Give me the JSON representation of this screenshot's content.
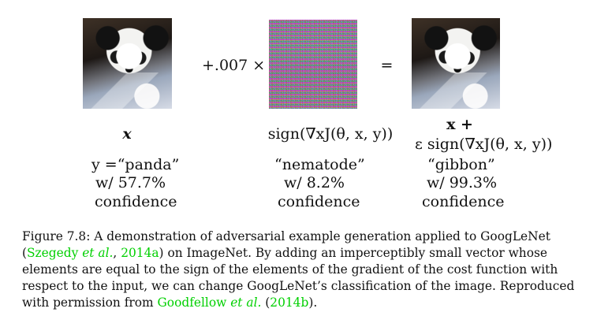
{
  "figure": {
    "left_image_alt": "panda image",
    "middle_image_alt": "perturbation noise image",
    "right_image_alt": "adversarial panda image",
    "op_plus_scale": "+.007 ×",
    "op_equals": "=",
    "left_var": "x",
    "middle_expr": "sign(∇xJ(θ, x, y))",
    "right_expr_line1": "x +",
    "right_expr_line2": "ε sign(∇xJ(θ, x, y))",
    "left_class_line1": "y =“panda”",
    "left_class_line2": "w/ 57.7%",
    "left_class_line3": "confidence",
    "middle_class_line1": "“nematode”",
    "middle_class_line2": "w/ 8.2%",
    "middle_class_line3": "confidence",
    "right_class_line1": "“gibbon”",
    "right_class_line2": "w/ 99.3%",
    "right_class_line3": "confidence"
  },
  "caption": {
    "line1": "Figure 7.8: A demonstration of adversarial example generation applied to GoogLeNet",
    "ref1_author": "Szegedy",
    "ref1_etal": "et al.",
    "ref1_year": "2014a",
    "line2_rest": " on ImageNet. By adding an imperceptibly small vector whose",
    "line3": "elements are equal to the sign of the elements of the gradient of the cost function with",
    "line4": "respect to the input, we can change GoogLeNet’s classification of the image. Reproduced",
    "line5_prefix": "with permission from ",
    "ref2_author": "Goodfellow",
    "ref2_etal": "et al.",
    "ref2_year": "2014b"
  },
  "colors": {
    "citation_green": "#00d000"
  }
}
